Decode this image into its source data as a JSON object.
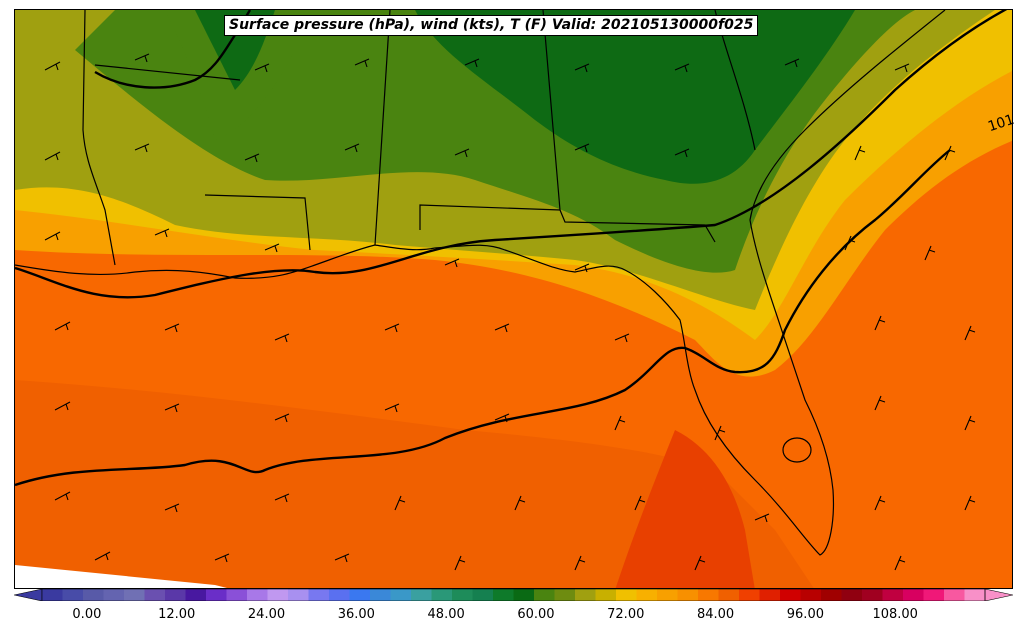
{
  "title": "Surface pressure (hPa), wind (kts), T (F) Valid: 202105130000f025",
  "contour_label": "101",
  "colorbar": {
    "tick_labels": [
      "0.00",
      "12.00",
      "24.00",
      "36.00",
      "48.00",
      "60.00",
      "72.00",
      "84.00",
      "96.00",
      "108.00"
    ],
    "min": -6,
    "max": 120,
    "step": 3,
    "colors": [
      "#3a3aa0",
      "#484ca8",
      "#585aa8",
      "#6464b0",
      "#7070b4",
      "#6a50b0",
      "#5a38a8",
      "#4818a0",
      "#6a2ec8",
      "#8a50d8",
      "#a878e8",
      "#c098f0",
      "#a890f0",
      "#7878f0",
      "#5a70f0",
      "#3a78f0",
      "#3a88d8",
      "#3a98c8",
      "#3aa0a0",
      "#2a9878",
      "#1e8c5a",
      "#158050",
      "#0e7a2a",
      "#0a6a14",
      "#4a8410",
      "#6e8c10",
      "#a0a010",
      "#c8b000",
      "#f0c000",
      "#f8b000",
      "#f8a000",
      "#f89000",
      "#f87800",
      "#f06000",
      "#f04000",
      "#e02000",
      "#d00000",
      "#b80000",
      "#a00000",
      "#900010",
      "#a00020",
      "#c00040",
      "#d80060",
      "#f01878",
      "#f858a0",
      "#f890c8"
    ]
  },
  "map": {
    "legend_variable": "Temperature (F)",
    "contour_variable": "Surface pressure (hPa)",
    "barb_variable": "Wind (kts)"
  }
}
